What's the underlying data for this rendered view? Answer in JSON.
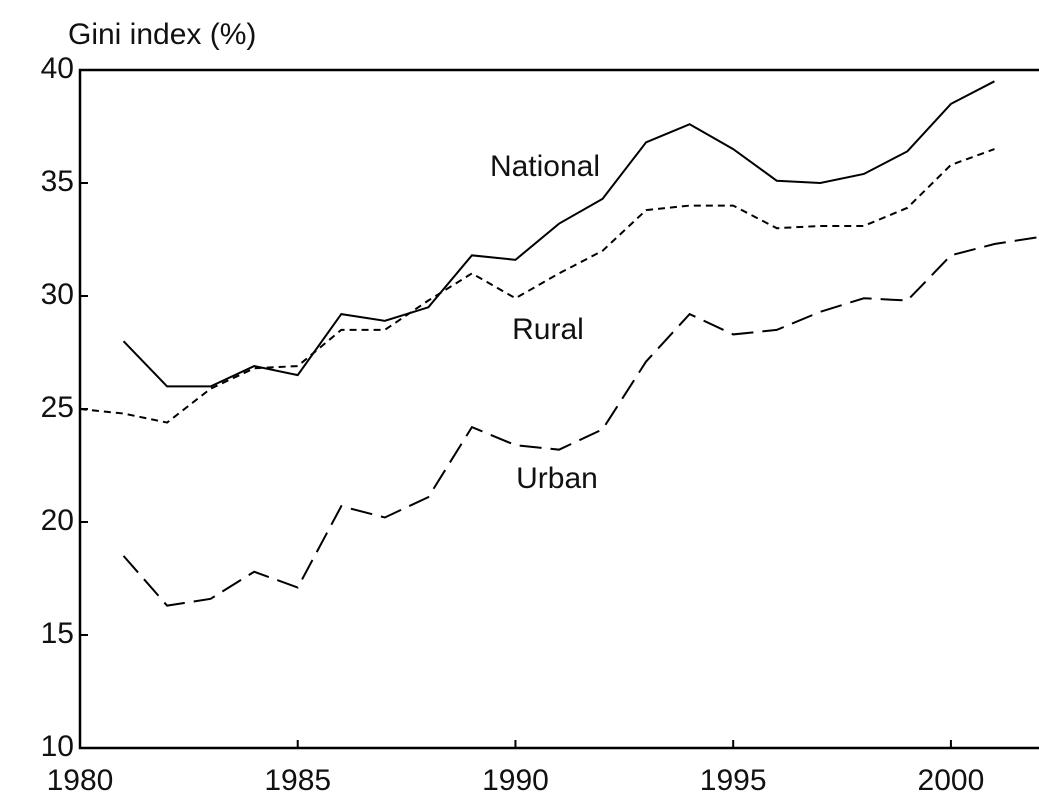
{
  "chart_data": {
    "type": "line",
    "ylabel": "Gini index (%)",
    "x": [
      1980,
      1981,
      1982,
      1983,
      1984,
      1985,
      1986,
      1987,
      1988,
      1989,
      1990,
      1991,
      1992,
      1993,
      1994,
      1995,
      1996,
      1997,
      1998,
      1999,
      2000,
      2001,
      2002
    ],
    "xlim": [
      1980,
      2002
    ],
    "xticks": [
      1980,
      1985,
      1990,
      1995,
      2000
    ],
    "ylim": [
      10,
      40
    ],
    "yticks": [
      10,
      15,
      20,
      25,
      30,
      35,
      40
    ],
    "grid": false,
    "series": [
      {
        "name": "National",
        "color": "#000000",
        "dash": "solid",
        "values": [
          null,
          28.0,
          26.0,
          26.0,
          26.9,
          26.5,
          29.2,
          28.9,
          29.5,
          31.8,
          31.6,
          33.2,
          34.3,
          36.8,
          37.6,
          36.5,
          35.1,
          35.0,
          35.4,
          36.4,
          38.5,
          39.5,
          null
        ]
      },
      {
        "name": "Rural",
        "color": "#000000",
        "dash": "short",
        "values": [
          25.0,
          24.8,
          24.4,
          25.9,
          26.8,
          26.9,
          28.5,
          28.5,
          29.8,
          31.0,
          29.9,
          31.0,
          32.0,
          33.8,
          34.0,
          34.0,
          33.0,
          33.1,
          33.1,
          33.9,
          35.8,
          36.5,
          null
        ]
      },
      {
        "name": "Urban",
        "color": "#000000",
        "dash": "long",
        "values": [
          null,
          18.5,
          16.3,
          16.6,
          17.8,
          17.1,
          20.7,
          20.2,
          21.1,
          24.2,
          23.4,
          23.2,
          24.1,
          27.1,
          29.2,
          28.3,
          28.5,
          29.3,
          29.9,
          29.8,
          31.8,
          32.3,
          32.6
        ]
      }
    ]
  }
}
